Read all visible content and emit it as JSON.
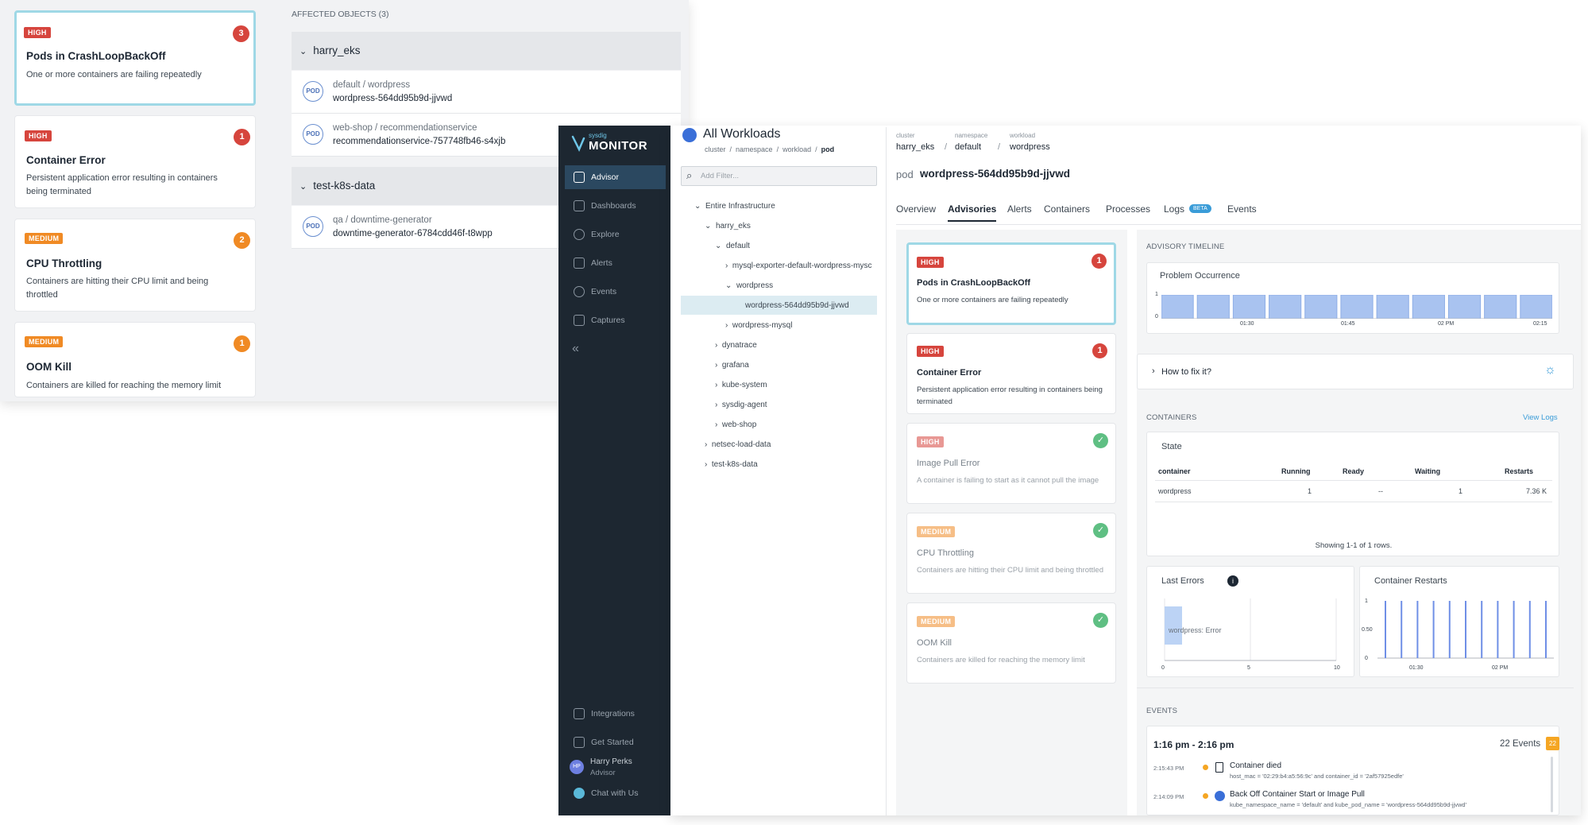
{
  "back_cards": [
    {
      "severity": "HIGH",
      "count": "3",
      "title": "Pods in CrashLoopBackOff",
      "desc": "One or more containers are failing repeatedly"
    },
    {
      "severity": "HIGH",
      "count": "1",
      "title": "Container Error",
      "desc": "Persistent application error resulting in containers being terminated"
    },
    {
      "severity": "MEDIUM",
      "count": "2",
      "title": "CPU Throttling",
      "desc": "Containers are hitting their CPU limit and being throttled"
    },
    {
      "severity": "MEDIUM",
      "count": "1",
      "title": "OOM Kill",
      "desc": "Containers are killed for reaching the memory limit"
    }
  ],
  "affected": {
    "header": "AFFECTED OBJECTS (3)",
    "groups": [
      {
        "name": "harry_eks",
        "objects": [
          {
            "ns": "default / wordpress",
            "name": "wordpress-564dd95b9d-jjvwd"
          },
          {
            "ns": "web-shop / recommendationservice",
            "name": "recommendationservice-757748fb46-s4xjb"
          }
        ]
      },
      {
        "name": "test-k8s-data",
        "objects": [
          {
            "ns": "qa / downtime-generator",
            "name": "downtime-generator-6784cdd46f-t8wpp"
          }
        ]
      }
    ],
    "pod_label": "POD"
  },
  "sidebar": {
    "brand_small": "sysdig",
    "brand": "MONITOR",
    "items": [
      "Advisor",
      "Dashboards",
      "Explore",
      "Alerts",
      "Events",
      "Captures"
    ],
    "collapse": "«",
    "bottom": [
      "Integrations",
      "Get Started"
    ],
    "user_initials": "HP",
    "user_name": "Harry Perks",
    "user_role": "Advisor",
    "chat": "Chat with Us"
  },
  "tree": {
    "title": "All Workloads",
    "crumbs": [
      "cluster",
      "namespace",
      "workload",
      "pod"
    ],
    "filter_placeholder": "Add Filter...",
    "items": [
      "Entire Infrastructure",
      "harry_eks",
      "default",
      "mysql-exporter-default-wordpress-mysc",
      "wordpress",
      "wordpress-564dd95b9d-jjvwd",
      "wordpress-mysql",
      "dynatrace",
      "grafana",
      "kube-system",
      "sysdig-agent",
      "web-shop",
      "netsec-load-data",
      "test-k8s-data"
    ]
  },
  "header": {
    "labels": [
      "cluster",
      "namespace",
      "workload"
    ],
    "values": [
      "harry_eks",
      "default",
      "wordpress"
    ],
    "pod_prefix": "pod",
    "pod_name": "wordpress-564dd95b9d-jjvwd",
    "tabs": [
      "Overview",
      "Advisories",
      "Alerts",
      "Containers",
      "Processes",
      "Logs",
      "Events"
    ],
    "beta": "BETA"
  },
  "advisories": [
    {
      "severity": "HIGH",
      "count": "1",
      "title": "Pods in CrashLoopBackOff",
      "desc": "One or more containers are failing repeatedly",
      "status": "open"
    },
    {
      "severity": "HIGH",
      "count": "1",
      "title": "Container Error",
      "desc": "Persistent application error resulting in containers being terminated",
      "status": "open"
    },
    {
      "severity": "HIGH",
      "title": "Image Pull Error",
      "desc": "A container is failing to start as it cannot pull the image",
      "status": "ok"
    },
    {
      "severity": "MEDIUM",
      "title": "CPU Throttling",
      "desc": "Containers are hitting their CPU limit and being throttled",
      "status": "ok"
    },
    {
      "severity": "MEDIUM",
      "title": "OOM Kill",
      "desc": "Containers are killed for reaching the memory limit",
      "status": "ok"
    }
  ],
  "timeline": {
    "section": "ADVISORY TIMELINE",
    "title": "Problem Occurrence",
    "y_ticks": [
      "1",
      "0"
    ],
    "x_ticks": [
      "01:30",
      "01:45",
      "02 PM",
      "02:15"
    ]
  },
  "howto": "How to fix it?",
  "containers": {
    "section": "CONTAINERS",
    "view_logs": "View Logs",
    "state": "State",
    "columns": [
      "container",
      "Running",
      "Ready",
      "Waiting",
      "Restarts"
    ],
    "rows": [
      [
        "wordpress",
        "1",
        "--",
        "1",
        "7.36 K"
      ]
    ],
    "footer": "Showing 1-1 of 1 rows."
  },
  "last_errors": {
    "title": "Last Errors",
    "bar_label": "wordpress: Error",
    "x_ticks": [
      "0",
      "5",
      "10"
    ]
  },
  "restarts": {
    "title": "Container Restarts",
    "y_ticks": [
      "1",
      "0.50",
      "0"
    ],
    "x_ticks": [
      "01:30",
      "02 PM"
    ]
  },
  "events": {
    "section": "EVENTS",
    "range": "1:16 pm - 2:16 pm",
    "count_label": "22 Events",
    "count_badge": "22",
    "items": [
      {
        "time": "2:15:43 PM",
        "title": "Container died",
        "detail": "host_mac = '02:29:b4:a5:56:9c' and container_id = '2af57925edfe'"
      },
      {
        "time": "2:14:09 PM",
        "title": "Back Off Container Start or Image Pull",
        "detail": "kube_namespace_name = 'default' and kube_pod_name = 'wordpress-564dd95b9d-jjvwd'"
      }
    ]
  },
  "chart_data": [
    {
      "type": "bar",
      "title": "Problem Occurrence",
      "x_ticks": [
        "01:30",
        "01:45",
        "02 PM",
        "02:15"
      ],
      "values": [
        1,
        1,
        1,
        1,
        1,
        1,
        1,
        1,
        1,
        1,
        1
      ],
      "ylim": [
        0,
        1
      ]
    },
    {
      "type": "bar",
      "title": "Last Errors",
      "categories": [
        "wordpress: Error"
      ],
      "values": [
        1
      ],
      "xlim": [
        0,
        10
      ]
    },
    {
      "type": "bar",
      "title": "Container Restarts",
      "values": [
        1,
        1,
        1,
        1,
        1,
        1,
        1,
        1,
        1,
        1,
        1
      ],
      "ylim": [
        0,
        1
      ]
    }
  ]
}
